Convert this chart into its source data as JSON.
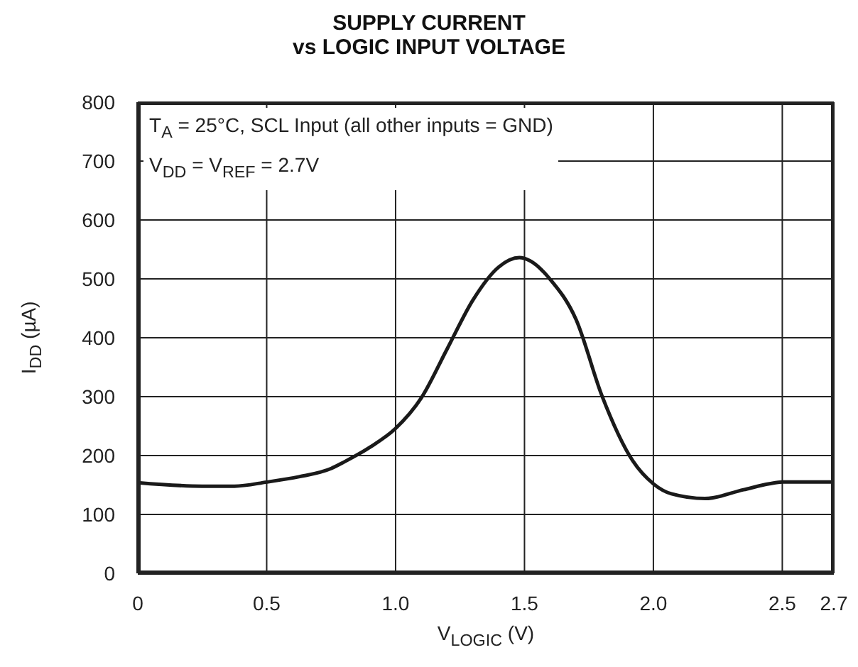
{
  "chart_data": {
    "type": "line",
    "title": "SUPPLY CURRENT\nvs LOGIC INPUT VOLTAGE",
    "xlabel": "V$_{LOGIC}$ (V)",
    "ylabel": "I$_{DD}$ (µA)",
    "annotations": [
      "T$_{A}$ = 25°C, SCL Input (all other inputs = GND)",
      "V$_{DD}$ = V$_{REF}$ = 2.7V"
    ],
    "x": [
      0,
      0.25,
      0.375,
      0.5,
      0.625,
      0.75,
      0.8,
      0.9,
      1.0,
      1.1,
      1.2,
      1.3,
      1.4,
      1.48,
      1.52,
      1.6,
      1.7,
      1.8,
      1.92,
      2.0,
      2.07,
      2.2,
      2.35,
      2.45,
      2.5,
      2.7
    ],
    "series": [
      {
        "color": "#1a1a1a",
        "values": [
          154,
          148,
          148,
          155,
          164,
          178,
          189,
          214,
          246,
          298,
          381,
          464,
          520,
          536,
          531,
          499,
          431,
          302,
          191,
          152,
          135,
          127,
          142,
          152,
          155,
          155
        ]
      }
    ],
    "xlim": [
      0,
      2.7
    ],
    "xticks": [
      0,
      {
        "value": 0.5,
        "label": "0.5"
      },
      {
        "value": 1,
        "label": "1.0"
      },
      {
        "value": 1.5,
        "label": "1.5"
      },
      {
        "value": 2,
        "label": "2.0"
      },
      {
        "value": 2.5,
        "label": "2.5"
      },
      {
        "value": 2.7,
        "label": "2.7"
      }
    ],
    "ylim": [
      0,
      800
    ],
    "yticks": [
      0,
      100,
      200,
      300,
      400,
      500,
      600,
      700,
      800
    ],
    "grid": true,
    "marker": "none",
    "line_style": "solid"
  }
}
